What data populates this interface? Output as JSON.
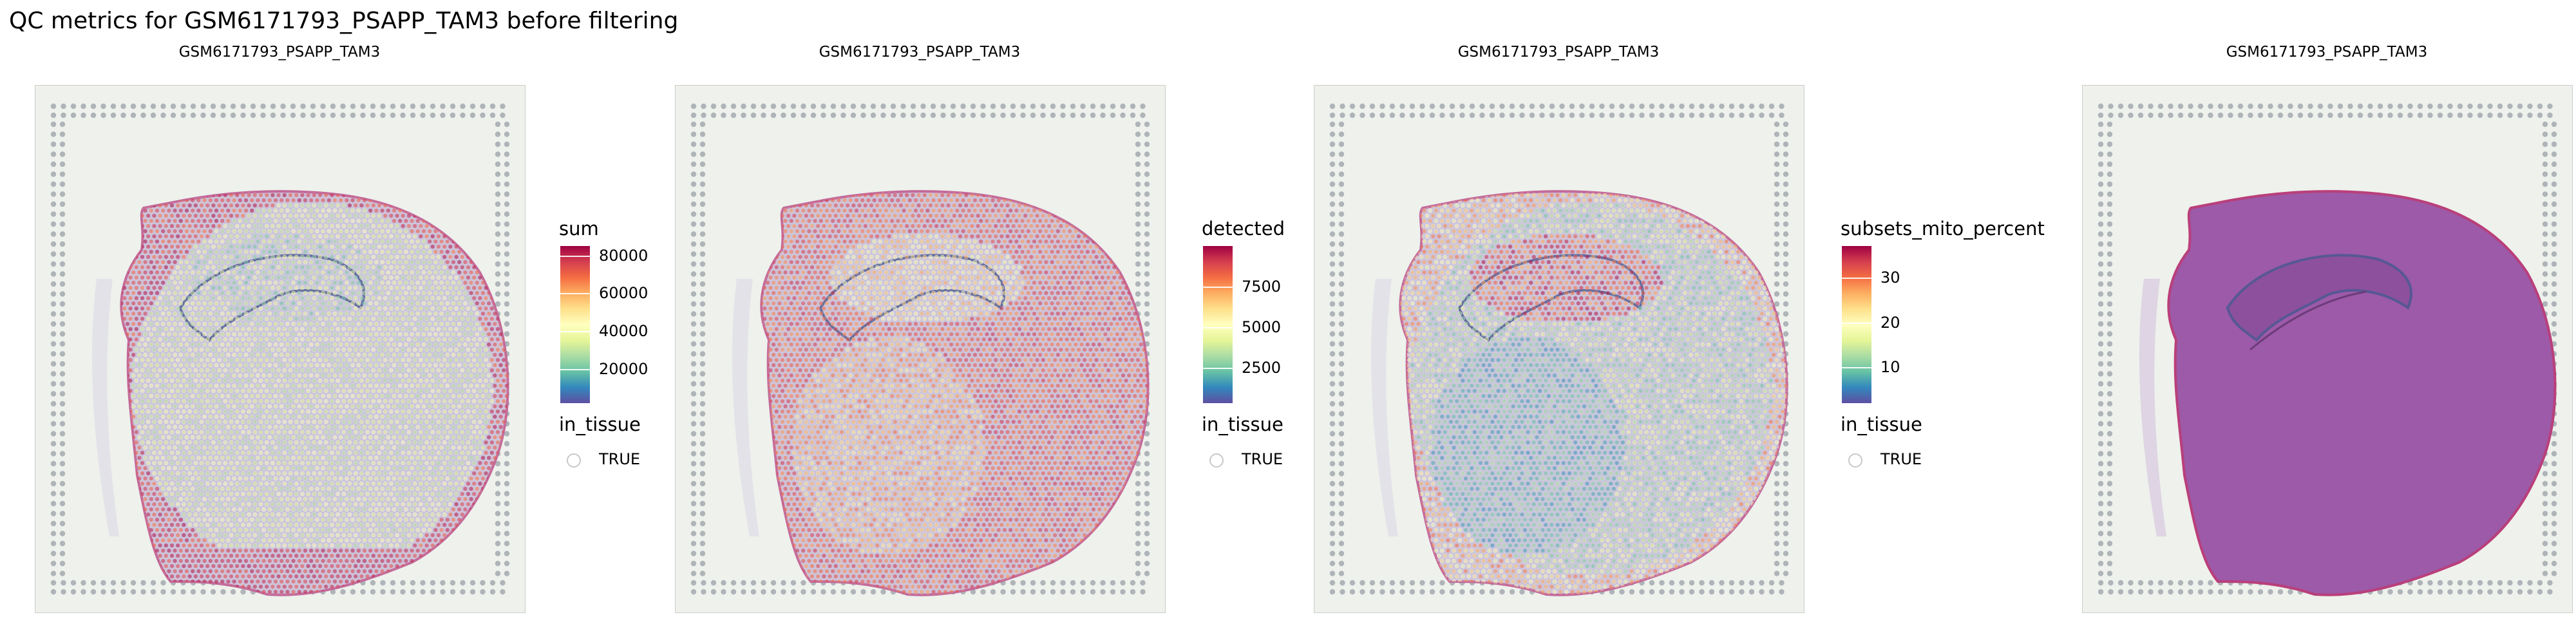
{
  "title": "QC metrics for GSM6171793_PSAPP_TAM3 before filtering",
  "palette": [
    "#5e4fa2",
    "#3288bd",
    "#66c2a5",
    "#abdda4",
    "#e6f598",
    "#ffffbf",
    "#fee08b",
    "#fdae61",
    "#f46d43",
    "#d53e4f",
    "#9e0142"
  ],
  "chart_data": [
    {
      "type": "spatial",
      "subtitle": "GSM6171793_PSAPP_TAM3",
      "fill": "sum",
      "legend_title": "sum",
      "scale_limits": [
        2000,
        85000
      ],
      "ticks": [
        20000,
        40000,
        60000,
        80000
      ],
      "tick_labels": [
        "20000",
        "40000",
        "60000",
        "80000"
      ],
      "shape_legend_title": "in_tissue",
      "shape_legend_entries": [
        "TRUE"
      ],
      "legend_position": "right"
    },
    {
      "type": "spatial",
      "subtitle": "GSM6171793_PSAPP_TAM3",
      "fill": "detected",
      "legend_title": "detected",
      "scale_limits": [
        300,
        10000
      ],
      "ticks": [
        2500,
        5000,
        7500
      ],
      "tick_labels": [
        "2500",
        "5000",
        "7500"
      ],
      "shape_legend_title": "in_tissue",
      "shape_legend_entries": [
        "TRUE"
      ],
      "legend_position": "right"
    },
    {
      "type": "spatial",
      "subtitle": "GSM6171793_PSAPP_TAM3",
      "fill": "subsets_mito_percent",
      "legend_title": "subsets_mito_percent",
      "scale_limits": [
        2,
        37
      ],
      "ticks": [
        10,
        20,
        30
      ],
      "tick_labels": [
        "10",
        "20",
        "30"
      ],
      "shape_legend_title": "in_tissue",
      "shape_legend_entries": [
        "TRUE"
      ],
      "legend_position": "right"
    },
    {
      "type": "spatial",
      "subtitle": "GSM6171793_PSAPP_TAM3",
      "fill": "none",
      "legend_title": "",
      "shape_legend_title": "",
      "shape_legend_entries": []
    }
  ]
}
